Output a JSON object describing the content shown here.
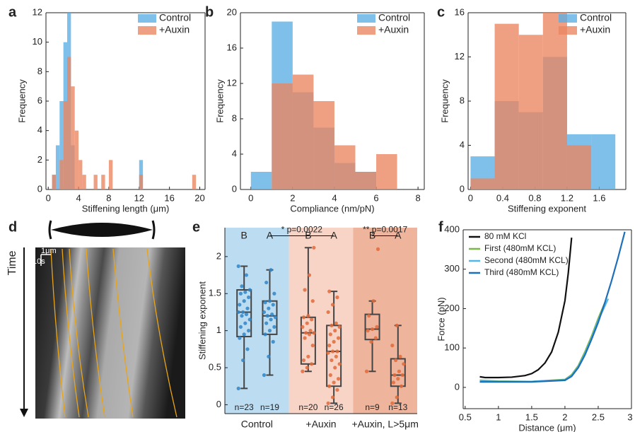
{
  "chart_data": [
    {
      "type": "histogram",
      "label": "a",
      "x_label": "Stiffening length (μm)",
      "y_label": "Frequency",
      "bins": [
        0.5,
        1,
        1.5,
        2,
        2.5,
        3,
        3.5,
        4,
        4.5,
        5,
        5.5,
        6,
        6.5,
        7,
        7.5,
        8,
        8.5,
        9,
        9.5,
        10,
        10.5,
        11,
        11.5,
        12,
        12.5,
        13,
        13.5,
        14,
        14.5,
        15,
        15.5,
        16,
        16.5,
        17,
        17.5,
        18,
        18.5,
        19,
        19.5,
        20
      ],
      "series": [
        {
          "name": "Control",
          "color": "#5aaee3",
          "values": [
            1,
            3,
            6,
            10,
            12,
            3,
            0,
            0,
            0,
            0,
            0,
            0,
            0,
            0,
            0,
            0,
            0,
            0,
            0,
            0,
            0,
            0,
            0,
            2,
            0,
            0,
            0,
            0,
            0,
            0,
            0,
            0,
            0,
            0,
            0,
            0,
            0,
            0,
            0
          ]
        },
        {
          "name": "+Auxin",
          "color": "#ea8560",
          "values": [
            1,
            0,
            2,
            6,
            9,
            7,
            4,
            2,
            1,
            0,
            0,
            1,
            0,
            1,
            0,
            2,
            0,
            0,
            0,
            0,
            0,
            0,
            0,
            1,
            0,
            0,
            0,
            0,
            0,
            0,
            0,
            0,
            0,
            0,
            0,
            0,
            0,
            1,
            0
          ]
        }
      ],
      "xlim": [
        -0.3,
        20.7
      ],
      "xticks": [
        0,
        4,
        8,
        12,
        16,
        20
      ],
      "ylim": [
        0,
        12
      ],
      "yticks": [
        0,
        2,
        4,
        6,
        8,
        10,
        12
      ]
    },
    {
      "type": "histogram",
      "label": "b",
      "x_label": "Compliance (nm/pN)",
      "y_label": "Frequency",
      "bins": [
        0,
        1,
        2,
        3,
        4,
        5,
        6,
        7
      ],
      "series": [
        {
          "name": "Control",
          "color": "#5aaee3",
          "values": [
            2,
            19,
            11,
            7,
            3,
            2,
            0
          ]
        },
        {
          "name": "+Auxin",
          "color": "#ea8560",
          "values": [
            0,
            12,
            13,
            10,
            5,
            2,
            4
          ]
        }
      ],
      "xlim": [
        -0.5,
        8.3
      ],
      "xticks": [
        0,
        2,
        4,
        6,
        8
      ],
      "ylim": [
        0,
        20
      ],
      "yticks": [
        0,
        4,
        8,
        12,
        16,
        20
      ]
    },
    {
      "type": "histogram",
      "label": "c",
      "x_label": "Stiffening exponent",
      "y_label": "Frequency",
      "bins": [
        0,
        0.3,
        0.6,
        0.9,
        1.2,
        1.5,
        1.8
      ],
      "series": [
        {
          "name": "Control",
          "color": "#5aaee3",
          "values": [
            3,
            8,
            7,
            12,
            5,
            5
          ]
        },
        {
          "name": "+Auxin",
          "color": "#ea8560",
          "values": [
            1,
            15,
            14,
            16,
            4,
            0
          ]
        }
      ],
      "xlim": [
        -0.03,
        1.93
      ],
      "xticks": [
        0,
        0.4,
        0.8,
        1.2,
        1.6
      ],
      "ylim": [
        0,
        16
      ],
      "yticks": [
        0,
        4,
        8,
        12,
        16
      ]
    },
    {
      "type": "box",
      "label": "e",
      "y_label": "Stiffening exponent",
      "ylim": [
        -0.12,
        2.39
      ],
      "yticks": [
        0,
        0.5,
        1,
        1.5,
        2
      ],
      "groups": [
        {
          "name": "Control",
          "background": "#bcdcf1",
          "boxes": [
            {
              "label": "B",
              "n_label": "n=23",
              "color": "#2f86c9",
              "whisker_low": 0.22,
              "q1": 0.92,
              "median": 1.25,
              "q3": 1.55,
              "whisker_high": 1.87,
              "points": [
                0.22,
                0.6,
                0.75,
                0.9,
                0.95,
                1.0,
                1.05,
                1.1,
                1.15,
                1.2,
                1.22,
                1.25,
                1.25,
                1.3,
                1.35,
                1.4,
                1.45,
                1.5,
                1.52,
                1.55,
                1.6,
                1.75,
                1.87
              ]
            },
            {
              "label": "A",
              "n_label": "n=19",
              "color": "#2f86c9",
              "whisker_low": 0.4,
              "q1": 0.95,
              "median": 1.2,
              "q3": 1.4,
              "whisker_high": 1.82,
              "points": [
                0.4,
                0.65,
                0.85,
                0.95,
                1.0,
                1.05,
                1.1,
                1.15,
                1.18,
                1.2,
                1.22,
                1.25,
                1.3,
                1.35,
                1.38,
                1.4,
                1.5,
                1.65,
                1.82
              ]
            }
          ]
        },
        {
          "name": "+Auxin",
          "background": "#f7d4c6",
          "boxes": [
            {
              "label": "B",
              "n_label": "n=20",
              "color": "#e06a3a",
              "whisker_low": 0.45,
              "q1": 0.55,
              "median": 0.97,
              "q3": 1.18,
              "whisker_high": 2.12,
              "points": [
                0.45,
                0.5,
                0.55,
                0.6,
                0.65,
                0.8,
                0.9,
                0.95,
                0.97,
                0.97,
                1.0,
                1.05,
                1.1,
                1.15,
                1.18,
                1.2,
                1.4,
                1.55,
                1.75,
                2.12
              ]
            },
            {
              "label": "A",
              "n_label": "n=26",
              "color": "#e06a3a",
              "whisker_low": 0.02,
              "q1": 0.25,
              "median": 0.72,
              "q3": 1.07,
              "whisker_high": 1.53,
              "points": [
                0.02,
                0.1,
                0.2,
                0.25,
                0.3,
                0.35,
                0.4,
                0.5,
                0.55,
                0.6,
                0.65,
                0.7,
                0.72,
                0.72,
                0.8,
                0.85,
                0.9,
                0.95,
                1.0,
                1.05,
                1.07,
                1.1,
                1.25,
                1.35,
                1.45,
                1.53
              ]
            }
          ]
        },
        {
          "name": "+Auxin, L>5μm",
          "background": "#eeb49c",
          "boxes": [
            {
              "label": "B",
              "n_label": "n=9",
              "color": "#e06a3a",
              "whisker_low": 0.45,
              "q1": 0.88,
              "median": 1.02,
              "q3": 1.22,
              "whisker_high": 1.4,
              "points": [
                0.45,
                0.85,
                0.9,
                1.0,
                1.02,
                1.05,
                1.2,
                1.4,
                2.1
              ]
            },
            {
              "label": "A",
              "n_label": "n=13",
              "color": "#e06a3a",
              "whisker_low": 0.02,
              "q1": 0.25,
              "median": 0.4,
              "q3": 0.62,
              "whisker_high": 1.07,
              "points": [
                0.02,
                0.1,
                0.25,
                0.3,
                0.35,
                0.4,
                0.4,
                0.45,
                0.55,
                0.6,
                0.65,
                0.8,
                1.07
              ]
            }
          ]
        }
      ],
      "annotations": [
        "* p=0.0022",
        "** p=0.0017"
      ]
    },
    {
      "type": "line",
      "label": "f",
      "x_label": "Distance (μm)",
      "y_label": "Force (pN)",
      "xlim": [
        0.47,
        3
      ],
      "xticks": [
        0.5,
        1,
        1.5,
        2,
        2.5,
        3
      ],
      "ylim": [
        -54,
        400
      ],
      "yticks": [
        0,
        100,
        200,
        300,
        400
      ],
      "series": [
        {
          "name": "80 mM KCl",
          "color": "#111111",
          "x": [
            0.72,
            0.8,
            1,
            1.2,
            1.4,
            1.5,
            1.6,
            1.7,
            1.8,
            1.9,
            2.0,
            2.05,
            2.1
          ],
          "y": [
            27,
            25,
            25,
            26,
            30,
            35,
            45,
            62,
            90,
            140,
            220,
            290,
            380
          ]
        },
        {
          "name": "First (480mM KCL)",
          "color": "#7ab648",
          "x": [
            0.72,
            1,
            1.5,
            2,
            2.1,
            2.2,
            2.3,
            2.4,
            2.5,
            2.6
          ],
          "y": [
            18,
            16,
            15,
            20,
            32,
            55,
            90,
            130,
            175,
            215
          ]
        },
        {
          "name": "Second (480mM KCL)",
          "color": "#4fb8e8",
          "x": [
            0.72,
            1,
            1.5,
            2,
            2.1,
            2.2,
            2.3,
            2.4,
            2.5,
            2.65
          ],
          "y": [
            16,
            15,
            15,
            19,
            30,
            52,
            85,
            125,
            170,
            225
          ]
        },
        {
          "name": "Third (480mM KCL)",
          "color": "#1f6fb8",
          "x": [
            0.72,
            1,
            1.5,
            2,
            2.1,
            2.2,
            2.3,
            2.4,
            2.5,
            2.6,
            2.7,
            2.8,
            2.9
          ],
          "y": [
            14,
            14,
            14,
            18,
            28,
            50,
            82,
            122,
            165,
            215,
            270,
            330,
            395
          ]
        }
      ]
    }
  ],
  "kymograph": {
    "label": "d",
    "axis_label": "Time",
    "scale_x": "1μm",
    "scale_t": "10s"
  }
}
